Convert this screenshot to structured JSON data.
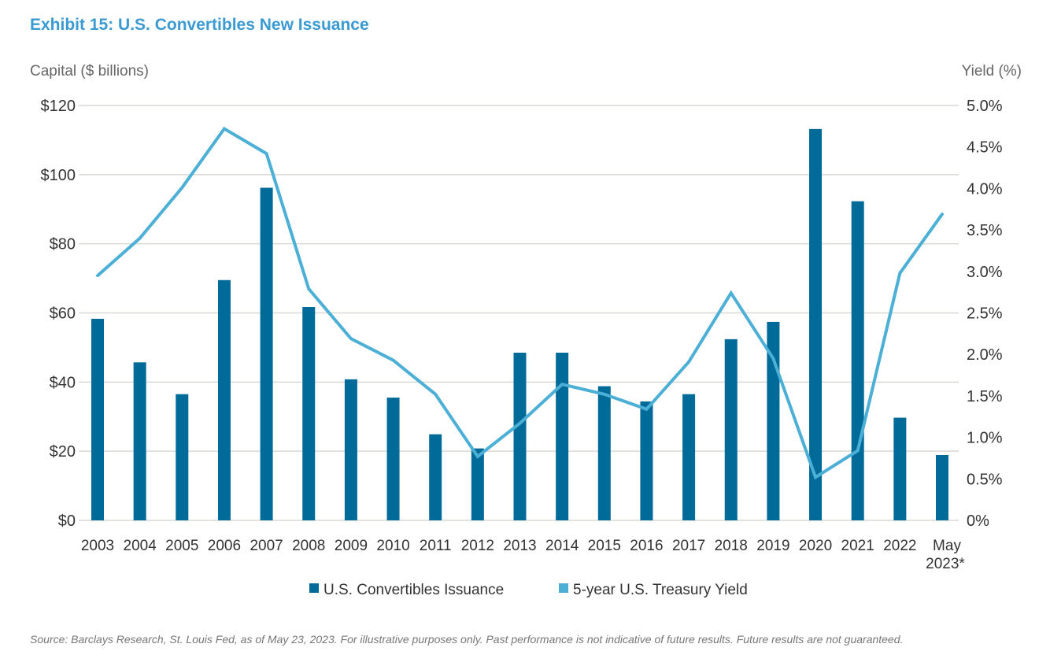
{
  "title": "Exhibit 15: U.S. Convertibles New Issuance",
  "source": "Source: Barclays Research, St. Louis Fed, as of May 23, 2023. For illustrative purposes only. Past performance is not indicative of future results. Future results are not guaranteed.",
  "colors": {
    "bars": "#006a98",
    "line": "#4bafd6",
    "title": "#3a9ad2"
  },
  "chart_data": {
    "type": "bar+line",
    "ylabel": "Capital ($ billions)",
    "y2label": "Yield (%)",
    "ylim": [
      0,
      120
    ],
    "y2lim": [
      0,
      5
    ],
    "yticks": [
      "$0",
      "$20",
      "$40",
      "$60",
      "$80",
      "$100",
      "$120"
    ],
    "y2ticks": [
      "0%",
      "0.5%",
      "1.0%",
      "1.5%",
      "2.0%",
      "2.5%",
      "3.0%",
      "3.5%",
      "4.0%",
      "4.5%",
      "5.0%"
    ],
    "grid": true,
    "legend": "bottom",
    "categories": [
      "2003",
      "2004",
      "2005",
      "2006",
      "2007",
      "2008",
      "2009",
      "2010",
      "2011",
      "2012",
      "2013",
      "2014",
      "2015",
      "2016",
      "2017",
      "2018",
      "2019",
      "2020",
      "2021",
      "2022",
      "May 2023*"
    ],
    "series": [
      {
        "name": "U.S. Convertibles Issuance",
        "type": "bar",
        "axis": "left",
        "values": [
          58.3,
          45.7,
          36.5,
          69.5,
          96.2,
          61.7,
          40.8,
          35.5,
          24.9,
          20.8,
          48.5,
          48.5,
          38.8,
          34.4,
          36.5,
          52.4,
          57.4,
          113.2,
          92.3,
          29.7,
          18.9
        ]
      },
      {
        "name": "5-year U.S. Treasury Yield",
        "type": "line",
        "axis": "right",
        "values": [
          2.95,
          3.4,
          4.01,
          4.72,
          4.42,
          2.79,
          2.19,
          1.93,
          1.52,
          0.77,
          1.17,
          1.64,
          1.52,
          1.34,
          1.91,
          2.74,
          1.95,
          0.52,
          0.84,
          2.98,
          3.69
        ]
      }
    ]
  }
}
